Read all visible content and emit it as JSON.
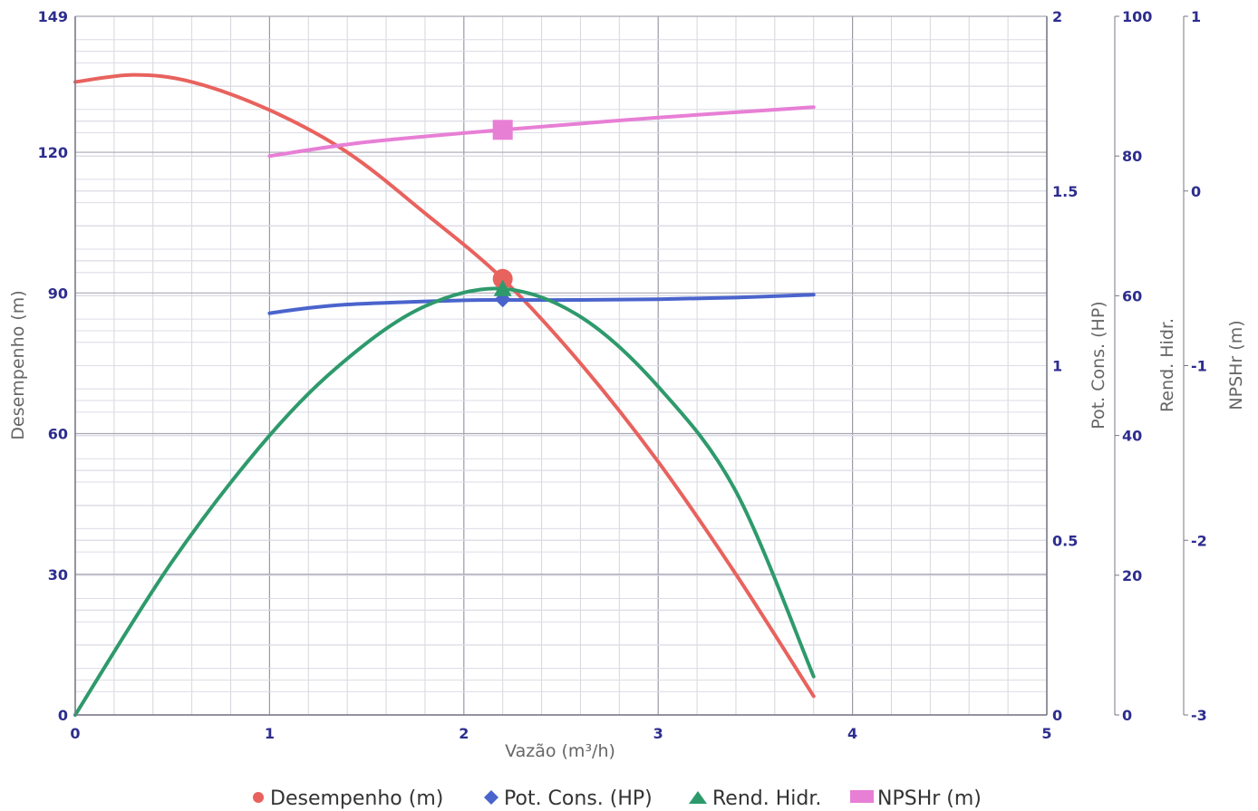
{
  "chart_data": {
    "type": "line",
    "x": {
      "label": "Vazão (m³/h)",
      "range": [
        0,
        5
      ],
      "ticks": [
        "0",
        "1",
        "2",
        "3",
        "4",
        "5"
      ]
    },
    "axes": [
      {
        "id": "desempenho",
        "label": "Desempenho (m)",
        "range": [
          0,
          149
        ],
        "ticks": [
          "0",
          "30",
          "60",
          "90",
          "120",
          "149"
        ],
        "position": "left"
      },
      {
        "id": "pot",
        "label": "Pot. Cons. (HP)",
        "range": [
          0,
          2
        ],
        "ticks": [
          "0",
          "0.5",
          "1",
          "1.5",
          "2"
        ],
        "position": "right"
      },
      {
        "id": "rend",
        "label": "Rend. Hidr.",
        "range": [
          0,
          100
        ],
        "ticks": [
          "0",
          "20",
          "40",
          "60",
          "80",
          "100"
        ],
        "position": "right"
      },
      {
        "id": "npsh",
        "label": "NPSHr (m)",
        "range": [
          -3,
          1
        ],
        "ticks": [
          "-3",
          "-2",
          "-1",
          "0",
          "1"
        ],
        "position": "right"
      }
    ],
    "series": [
      {
        "name": "Desempenho (m)",
        "axis": "desempenho",
        "color": "#e8625e",
        "marker": "circle",
        "points": [
          [
            0,
            135
          ],
          [
            0.3,
            136.5
          ],
          [
            0.6,
            135
          ],
          [
            1,
            129
          ],
          [
            1.4,
            120
          ],
          [
            1.8,
            107
          ],
          [
            2.2,
            93
          ],
          [
            2.6,
            75
          ],
          [
            3,
            54
          ],
          [
            3.4,
            30
          ],
          [
            3.8,
            4
          ]
        ],
        "highlight": [
          2.2,
          93
        ]
      },
      {
        "name": "Pot. Cons. (HP)",
        "axis": "pot",
        "color": "#4a64cc",
        "marker": "diamond",
        "points": [
          [
            1,
            1.15
          ],
          [
            1.2,
            1.165
          ],
          [
            1.4,
            1.175
          ],
          [
            1.7,
            1.182
          ],
          [
            2,
            1.187
          ],
          [
            2.2,
            1.188
          ],
          [
            2.6,
            1.188
          ],
          [
            3,
            1.19
          ],
          [
            3.4,
            1.195
          ],
          [
            3.8,
            1.203
          ]
        ],
        "highlight": [
          2.2,
          1.19
        ]
      },
      {
        "name": "Rend. Hidr.",
        "axis": "rend",
        "color": "#2e9a6c",
        "marker": "triangle",
        "points": [
          [
            0,
            0
          ],
          [
            0.5,
            22
          ],
          [
            1,
            40
          ],
          [
            1.4,
            51
          ],
          [
            1.8,
            58.5
          ],
          [
            2.2,
            61
          ],
          [
            2.6,
            57
          ],
          [
            3,
            47
          ],
          [
            3.4,
            32
          ],
          [
            3.8,
            5.5
          ]
        ],
        "highlight": [
          2.2,
          61
        ]
      },
      {
        "name": "NPSHr (m)",
        "axis": "npsh",
        "color": "#e77fd5",
        "marker": "square",
        "points": [
          [
            1,
            0.2
          ],
          [
            1.5,
            0.28
          ],
          [
            2.2,
            0.35
          ],
          [
            3,
            0.42
          ],
          [
            3.8,
            0.48
          ]
        ],
        "highlight": [
          2.2,
          0.35
        ]
      }
    ],
    "grid": true,
    "legend": "bottom"
  }
}
